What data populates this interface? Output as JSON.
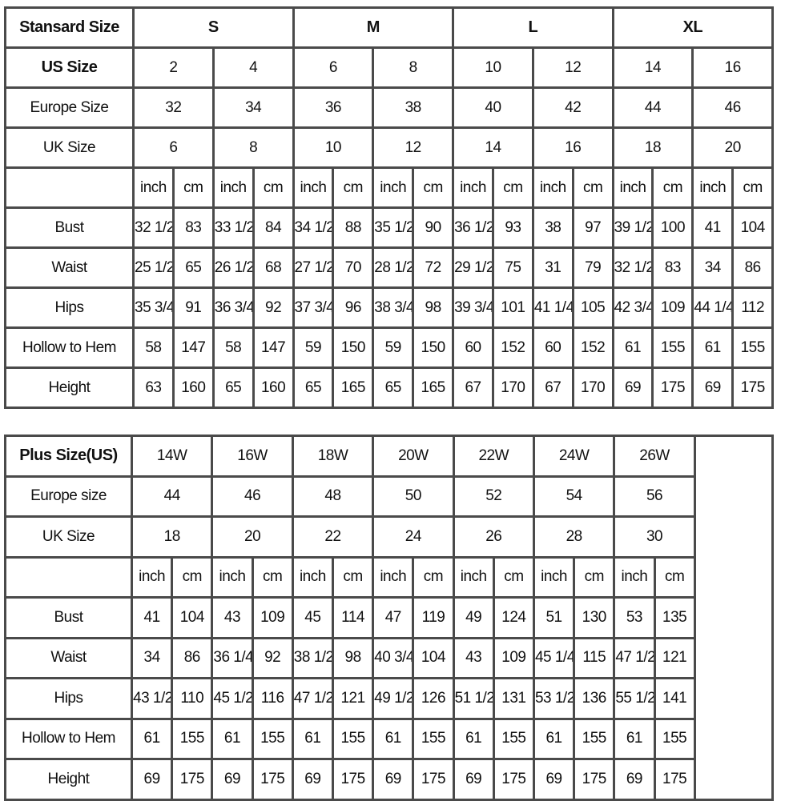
{
  "standard": {
    "header_label": "Stansard Size",
    "groups": [
      "S",
      "M",
      "L",
      "XL"
    ],
    "size_rows": [
      {
        "label": "US Size",
        "values": [
          "2",
          "4",
          "6",
          "8",
          "10",
          "12",
          "14",
          "16"
        ]
      },
      {
        "label": "Europe Size",
        "values": [
          "32",
          "34",
          "36",
          "38",
          "40",
          "42",
          "44",
          "46"
        ]
      },
      {
        "label": "UK Size",
        "values": [
          "6",
          "8",
          "10",
          "12",
          "14",
          "16",
          "18",
          "20"
        ]
      }
    ],
    "units": [
      "inch",
      "cm"
    ],
    "measure_rows": [
      {
        "label": "Bust",
        "values": [
          "32 1/2",
          "83",
          "33 1/2",
          "84",
          "34 1/2",
          "88",
          "35 1/2",
          "90",
          "36 1/2",
          "93",
          "38",
          "97",
          "39 1/2",
          "100",
          "41",
          "104"
        ]
      },
      {
        "label": "Waist",
        "values": [
          "25 1/2",
          "65",
          "26 1/2",
          "68",
          "27 1/2",
          "70",
          "28 1/2",
          "72",
          "29 1/2",
          "75",
          "31",
          "79",
          "32 1/2",
          "83",
          "34",
          "86"
        ]
      },
      {
        "label": "Hips",
        "values": [
          "35 3/4",
          "91",
          "36 3/4",
          "92",
          "37 3/4",
          "96",
          "38 3/4",
          "98",
          "39 3/4",
          "101",
          "41 1/4",
          "105",
          "42 3/4",
          "109",
          "44 1/4",
          "112"
        ]
      },
      {
        "label": "Hollow to Hem",
        "values": [
          "58",
          "147",
          "58",
          "147",
          "59",
          "150",
          "59",
          "150",
          "60",
          "152",
          "60",
          "152",
          "61",
          "155",
          "61",
          "155"
        ]
      },
      {
        "label": "Height",
        "values": [
          "63",
          "160",
          "65",
          "160",
          "65",
          "165",
          "65",
          "165",
          "67",
          "170",
          "67",
          "170",
          "69",
          "175",
          "69",
          "175"
        ]
      }
    ]
  },
  "plus": {
    "header_label": "Plus Size(US)",
    "sizes": [
      "14W",
      "16W",
      "18W",
      "20W",
      "22W",
      "24W",
      "26W"
    ],
    "size_rows": [
      {
        "label": "Europe size",
        "values": [
          "44",
          "46",
          "48",
          "50",
          "52",
          "54",
          "56"
        ]
      },
      {
        "label": "UK Size",
        "values": [
          "18",
          "20",
          "22",
          "24",
          "26",
          "28",
          "30"
        ]
      }
    ],
    "units": [
      "inch",
      "cm"
    ],
    "measure_rows": [
      {
        "label": "Bust",
        "values": [
          "41",
          "104",
          "43",
          "109",
          "45",
          "114",
          "47",
          "119",
          "49",
          "124",
          "51",
          "130",
          "53",
          "135"
        ]
      },
      {
        "label": "Waist",
        "values": [
          "34",
          "86",
          "36 1/4",
          "92",
          "38 1/2",
          "98",
          "40 3/4",
          "104",
          "43",
          "109",
          "45 1/4",
          "115",
          "47 1/2",
          "121"
        ]
      },
      {
        "label": "Hips",
        "values": [
          "43 1/2",
          "110",
          "45 1/2",
          "116",
          "47 1/2",
          "121",
          "49 1/2",
          "126",
          "51 1/2",
          "131",
          "53 1/2",
          "136",
          "55 1/2",
          "141"
        ]
      },
      {
        "label": "Hollow to Hem",
        "values": [
          "61",
          "155",
          "61",
          "155",
          "61",
          "155",
          "61",
          "155",
          "61",
          "155",
          "61",
          "155",
          "61",
          "155"
        ]
      },
      {
        "label": "Height",
        "values": [
          "69",
          "175",
          "69",
          "175",
          "69",
          "175",
          "69",
          "175",
          "69",
          "175",
          "69",
          "175",
          "69",
          "175"
        ]
      }
    ]
  }
}
